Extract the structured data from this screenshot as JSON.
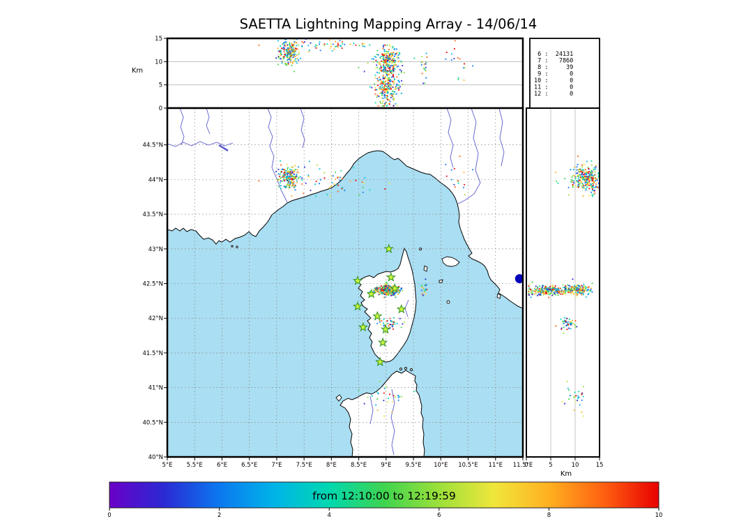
{
  "title": "SAETTA Lightning Mapping Array - 14/06/14",
  "alt_axis": {
    "label": "Km",
    "ticks": [
      "15",
      "10",
      "5",
      "0"
    ]
  },
  "counts_panel": {
    "rows": [
      {
        "text": " 6 :  24131",
        "color": "#000000"
      },
      {
        "text": " 7 :   7860",
        "color": "#ff0000"
      },
      {
        "text": " 8 :     39",
        "color": "#000000"
      },
      {
        "text": " 9 :      0",
        "color": "#000000"
      },
      {
        "text": "10 :      0",
        "color": "#000000"
      },
      {
        "text": "11 :      0",
        "color": "#000000"
      },
      {
        "text": "12 :      0",
        "color": "#000000"
      }
    ]
  },
  "map": {
    "lat_ticks": [
      "44.5°N",
      "44°N",
      "43.5°N",
      "43°N",
      "42.5°N",
      "42°N",
      "41.5°N",
      "41°N",
      "40.5°N",
      "40°N"
    ],
    "lon_ticks": [
      "5°E",
      "5.5°E",
      "6°E",
      "6.5°E",
      "7°E",
      "7.5°E",
      "8°E",
      "8.5°E",
      "9°E",
      "9.5°E",
      "10°E",
      "10.5°E",
      "11°E",
      "11.5°E"
    ]
  },
  "right_axis": {
    "label": "Km",
    "ticks": [
      "0",
      "5",
      "10",
      "15"
    ]
  },
  "colorbar": {
    "label": "from 12:10:00 to 12:19:59",
    "ticks": [
      "0",
      "2",
      "4",
      "6",
      "8",
      "10"
    ],
    "range": [
      0,
      10
    ],
    "gradient": [
      "#6a00c8",
      "#2a2ad4",
      "#0b78f0",
      "#00b4e8",
      "#00d8b0",
      "#3fd44f",
      "#9ce03a",
      "#f0e63c",
      "#ffb020",
      "#ff6010",
      "#e80000"
    ]
  },
  "chart_data": {
    "type": "scatter",
    "title": "SAETTA Lightning Mapping Array - 14/06/14",
    "date": "14/06/14",
    "time_window": "from 12:10:00 to 12:19:59",
    "panels": [
      {
        "name": "altitude-vs-longitude",
        "ylabel": "Km",
        "ylim": [
          0,
          15
        ],
        "grid_alt_km": [
          5,
          10
        ]
      },
      {
        "name": "plan-view-map",
        "xlim_lon": [
          5,
          11.5
        ],
        "ylim_lat": [
          40,
          45.03
        ],
        "grid_step_deg": 0.5
      },
      {
        "name": "altitude-vs-latitude",
        "xlabel": "Km",
        "xlim": [
          0,
          15
        ],
        "grid_alt_km": [
          5,
          10
        ]
      }
    ],
    "station_counts": [
      {
        "station": "6",
        "sources": 24131,
        "highlighted": false
      },
      {
        "station": "7",
        "sources": 7860,
        "highlighted": true
      },
      {
        "station": "8",
        "sources": 39,
        "highlighted": false
      },
      {
        "station": "9",
        "sources": 0,
        "highlighted": false
      },
      {
        "station": "10",
        "sources": 0,
        "highlighted": false
      },
      {
        "station": "11",
        "sources": 0,
        "highlighted": false
      },
      {
        "station": "12",
        "sources": 0,
        "highlighted": false
      }
    ],
    "palette": [
      "#2a2ad4",
      "#0b78f0",
      "#00b4e8",
      "#00d8b0",
      "#3fd44f",
      "#9ce03a",
      "#f0e63c",
      "#ffb020",
      "#ff6010",
      "#e80000"
    ],
    "clusters": [
      {
        "name": "alps-storm",
        "lon": 7.22,
        "lat": 44.02,
        "lon_sd": 0.09,
        "lat_sd": 0.08,
        "alt_mean": 12.0,
        "alt_sd": 1.3,
        "alt_min": 7.5,
        "alt_max": 14.8,
        "n": 200
      },
      {
        "name": "alps-anvil",
        "lon": 7.9,
        "lat": 43.98,
        "lon_sd": 0.45,
        "lat_sd": 0.12,
        "alt_mean": 13.5,
        "alt_sd": 0.6,
        "alt_min": 11.0,
        "alt_max": 14.9,
        "n": 55
      },
      {
        "name": "corsica-storm-low",
        "lon": 9.02,
        "lat": 42.4,
        "lon_sd": 0.1,
        "lat_sd": 0.035,
        "alt_mean": 4.5,
        "alt_sd": 1.8,
        "alt_min": 0.5,
        "alt_max": 8.0,
        "n": 230
      },
      {
        "name": "corsica-storm-high",
        "lon": 9.03,
        "lat": 42.41,
        "lon_sd": 0.09,
        "lat_sd": 0.035,
        "alt_mean": 10.5,
        "alt_sd": 1.4,
        "alt_min": 8.0,
        "alt_max": 13.5,
        "n": 170
      },
      {
        "name": "corsica-south",
        "lon": 9.06,
        "lat": 41.92,
        "lon_sd": 0.12,
        "lat_sd": 0.05,
        "alt_mean": 8.5,
        "alt_sd": 1.0,
        "alt_min": 6.0,
        "alt_max": 11.0,
        "n": 45
      },
      {
        "name": "east-stray",
        "lon": 9.7,
        "lat": 42.42,
        "lon_sd": 0.06,
        "lat_sd": 0.05,
        "alt_mean": 9.0,
        "alt_sd": 2.0,
        "alt_min": 4.0,
        "alt_max": 13.0,
        "n": 18
      },
      {
        "name": "tuscany-stray",
        "lon": 10.32,
        "lat": 44.05,
        "lon_sd": 0.1,
        "lat_sd": 0.2,
        "alt_mean": 11.0,
        "alt_sd": 2.0,
        "alt_min": 5.0,
        "alt_max": 14.5,
        "n": 16
      },
      {
        "name": "sardinia-sparse",
        "lon": 8.95,
        "lat": 40.82,
        "lon_sd": 0.2,
        "lat_sd": 0.12,
        "alt_mean": 10.0,
        "alt_sd": 1.2,
        "alt_min": 7.0,
        "alt_max": 13.0,
        "n": 28
      }
    ],
    "stations_lonlat": [
      [
        9.05,
        43.0
      ],
      [
        8.48,
        42.54
      ],
      [
        9.09,
        42.59
      ],
      [
        8.73,
        42.35
      ],
      [
        9.16,
        42.43
      ],
      [
        8.48,
        42.17
      ],
      [
        9.28,
        42.13
      ],
      [
        8.84,
        42.03
      ],
      [
        8.58,
        41.87
      ],
      [
        8.99,
        41.84
      ],
      [
        8.94,
        41.65
      ],
      [
        8.89,
        41.37
      ]
    ],
    "station_marker_color": "#ccf63c",
    "station_marker_edge": "#2f8f1f",
    "overflow_marker_lonlat": [
      11.44,
      42.57
    ],
    "overflow_marker_color": "#0000bb",
    "sea_color": "#aadef2",
    "land_color": "#ffffff",
    "river_color": "#5b5bd0"
  }
}
